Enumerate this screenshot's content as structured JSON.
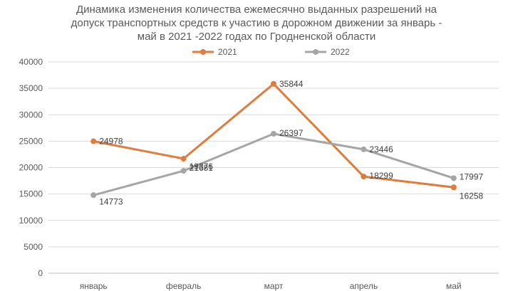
{
  "chart_data": {
    "type": "line",
    "title_lines": [
      "Динамика изменения количества ежемесячно выданных разрешений на",
      "допуск транспортных средств к участию в дорожном движении за январь -",
      "май в 2021 -2022 годах по Гродненской области"
    ],
    "categories": [
      "январь",
      "февраль",
      "март",
      "апрель",
      "май"
    ],
    "series": [
      {
        "name": "2021",
        "color": "#E07B39",
        "values": [
          24978,
          21681,
          35844,
          18299,
          16258
        ]
      },
      {
        "name": "2022",
        "color": "#A5A5A5",
        "values": [
          14773,
          19376,
          26397,
          23446,
          17997
        ]
      }
    ],
    "ylim": [
      0,
      40000
    ],
    "yticks": [
      0,
      5000,
      10000,
      15000,
      20000,
      25000,
      30000,
      35000,
      40000
    ],
    "grid": true,
    "legend": "top-center"
  }
}
